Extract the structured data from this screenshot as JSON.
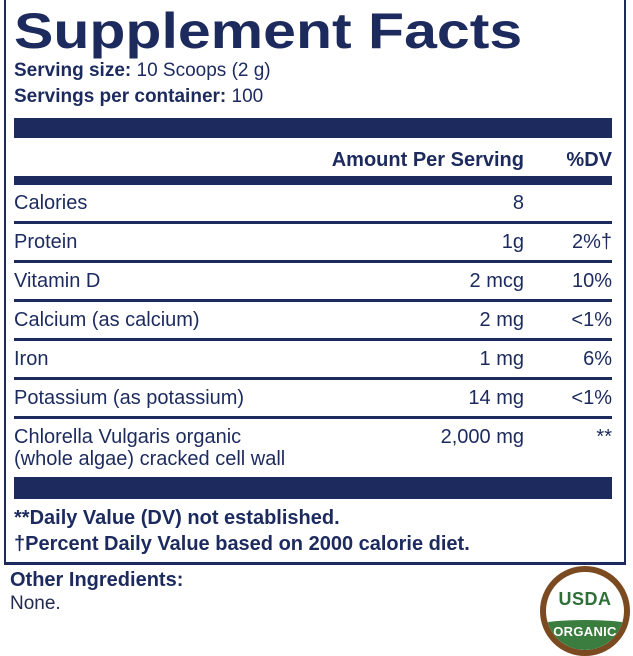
{
  "title": "Supplement Facts",
  "serving": {
    "size_label": "Serving size:",
    "size_value": "10 Scoops (2 g)",
    "per_container_label": "Servings per container:",
    "per_container_value": "100"
  },
  "table": {
    "amount_header": "Amount Per Serving",
    "dv_header": "%DV",
    "rows": [
      {
        "name": "Calories",
        "name_line2": "",
        "amount": "8",
        "dv": ""
      },
      {
        "name": "Protein",
        "name_line2": "",
        "amount": "1g",
        "dv": "2%†"
      },
      {
        "name": "Vitamin D",
        "name_line2": "",
        "amount": "2 mcg",
        "dv": "10%"
      },
      {
        "name": "Calcium (as calcium)",
        "name_line2": "",
        "amount": "2 mg",
        "dv": "<1%"
      },
      {
        "name": "Iron",
        "name_line2": "",
        "amount": "1 mg",
        "dv": "6%"
      },
      {
        "name": "Potassium (as potassium)",
        "name_line2": "",
        "amount": "14 mg",
        "dv": "<1%"
      },
      {
        "name": "Chlorella Vulgaris organic",
        "name_line2": "(whole algae) cracked cell wall",
        "amount": "2,000 mg",
        "dv": "**"
      }
    ]
  },
  "footnotes": [
    "**Daily Value (DV) not established.",
    "†Percent Daily Value based on 2000 calorie diet."
  ],
  "other_ingredients": {
    "label": "Other Ingredients:",
    "value": "None."
  },
  "seal": {
    "top_text": "USDA",
    "bottom_text": "ORGANIC"
  },
  "colors": {
    "navy": "#1c2a5e",
    "seal_brown": "#7b4a21",
    "seal_green": "#3b7d3f"
  }
}
